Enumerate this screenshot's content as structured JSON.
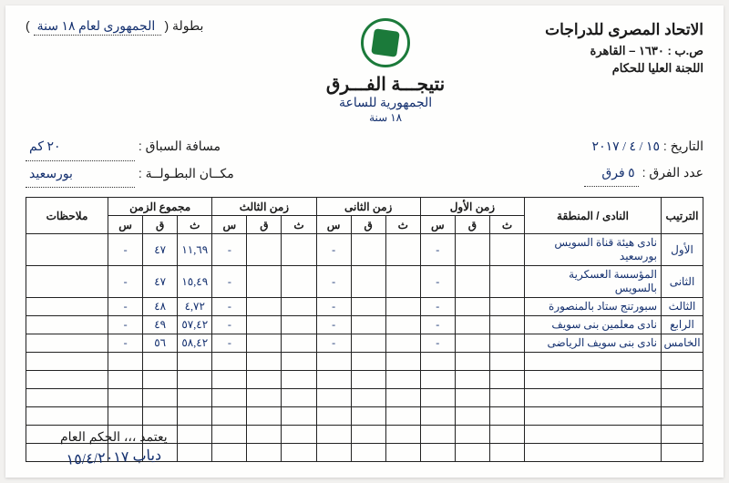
{
  "org": {
    "line1": "الاتحاد المصرى للدراجات",
    "line2": "ص.ب : ١٦٣٠ – القاهرة",
    "line3": "اللجنة العليا للحكام"
  },
  "title": "نتيجـــة الفـــرق",
  "subtitle_hw": "الجمهورية للساعة",
  "subtitle_hw2": "١٨ سنة",
  "championship": {
    "label": "بطولة (",
    "value_hw": "الجمهورى لعام ١٨ سنة",
    "close": ")"
  },
  "meta": {
    "date_label": "التاريخ :",
    "date_value": "١٥ / ٤ / ٢٠١٧",
    "teams_label": "عدد الفرق :",
    "teams_value": "٥ فرق",
    "distance_label": "مسافة السباق :",
    "distance_value": "٢٠ كم",
    "place_label": "مكــان البطـولــة :",
    "place_value": "بورسعيد"
  },
  "columns": {
    "rank": "الترتيب",
    "club": "النادى / المنطقة",
    "t1": "زمن الأول",
    "t2": "زمن الثانى",
    "t3": "زمن الثالث",
    "total": "مجموع الزمن",
    "notes": "ملاحظات",
    "th": "ث",
    "q": "ق",
    "s": "س"
  },
  "rows": [
    {
      "rank": "الأول",
      "club": "نادى هيئة قناة السويس بورسعيد",
      "tot_th": "١١,٦٩",
      "tot_q": "٤٧",
      "tot_s": "-"
    },
    {
      "rank": "الثانى",
      "club": "المؤسسة العسكرية بالسويس",
      "tot_th": "١٥,٤٩",
      "tot_q": "٤٧",
      "tot_s": "-"
    },
    {
      "rank": "الثالث",
      "club": "سبورتنج ستاد بالمنصورة",
      "tot_th": "٤,٧٢",
      "tot_q": "٤٨",
      "tot_s": "-"
    },
    {
      "rank": "الرابع",
      "club": "نادى معلمين بنى سويف",
      "tot_th": "٥٧,٤٢",
      "tot_q": "٤٩",
      "tot_s": "-"
    },
    {
      "rank": "الخامس",
      "club": "نادى بنى سويف الرياضى",
      "tot_th": "٥٨,٤٢",
      "tot_q": "٥٦",
      "tot_s": "-"
    }
  ],
  "blank_rows": 6,
  "footer": {
    "label": "يعتمد ،،،   الحكم العام",
    "signature": "دياب ١٥/٤/٢٠١٧"
  },
  "colors": {
    "ink": "#1a1a1a",
    "pen": "#14306f",
    "logo": "#1b7a3a",
    "paper": "#fefefd",
    "bg": "#f2f1ef"
  }
}
